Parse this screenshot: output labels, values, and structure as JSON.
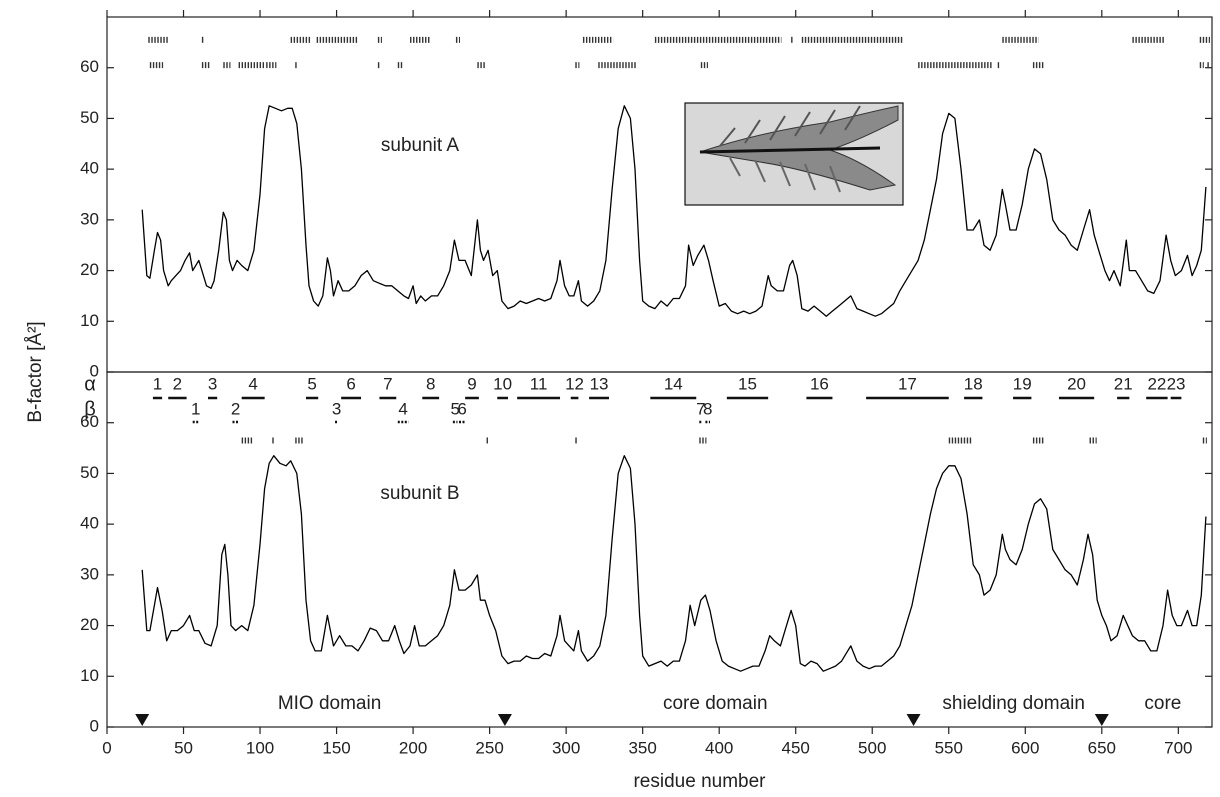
{
  "chart_data": [
    {
      "type": "line",
      "annotation": "subunit A",
      "ylabel": "B-factor [Å²]",
      "xlim": [
        0,
        722
      ],
      "xticks": [
        0,
        50,
        100,
        150,
        200,
        250,
        300,
        350,
        400,
        450,
        500,
        550,
        600,
        650,
        700
      ],
      "ylim": [
        0,
        70
      ],
      "yticks": [
        0,
        10,
        20,
        30,
        40,
        50,
        60
      ],
      "color": "#000000",
      "x": [
        23,
        26,
        28,
        31,
        33,
        35,
        37,
        40,
        42,
        45,
        48,
        51,
        54,
        56,
        60,
        62,
        65,
        68,
        70,
        73,
        76,
        78,
        80,
        82,
        85,
        88,
        92,
        96,
        100,
        103,
        106,
        110,
        114,
        118,
        121,
        124,
        127,
        130,
        132,
        135,
        138,
        141,
        144,
        146,
        148,
        151,
        154,
        158,
        162,
        166,
        170,
        174,
        178,
        182,
        186,
        190,
        194,
        197,
        200,
        202,
        205,
        208,
        212,
        216,
        220,
        224,
        227,
        230,
        234,
        238,
        242,
        244,
        246,
        249,
        252,
        255,
        258,
        262,
        266,
        270,
        274,
        278,
        282,
        286,
        290,
        294,
        296,
        299,
        302,
        305,
        308,
        310,
        314,
        318,
        322,
        326,
        330,
        334,
        338,
        342,
        345,
        348,
        350,
        354,
        358,
        362,
        366,
        370,
        374,
        378,
        380,
        383,
        386,
        390,
        393,
        396,
        400,
        404,
        408,
        412,
        416,
        420,
        424,
        428,
        432,
        434,
        438,
        442,
        446,
        448,
        451,
        454,
        458,
        462,
        466,
        470,
        474,
        478,
        482,
        486,
        490,
        494,
        498,
        502,
        506,
        510,
        514,
        518,
        522,
        526,
        530,
        534,
        538,
        542,
        546,
        550,
        554,
        558,
        562,
        566,
        570,
        573,
        577,
        581,
        585,
        587,
        590,
        594,
        598,
        602,
        606,
        610,
        614,
        618,
        622,
        626,
        630,
        634,
        638,
        642,
        645,
        648,
        652,
        655,
        658,
        662,
        666,
        668,
        672,
        676,
        680,
        684,
        688,
        692,
        695,
        698,
        702,
        706,
        709,
        712,
        715,
        718
      ],
      "values": [
        32,
        19,
        18.5,
        24,
        27.5,
        26,
        20,
        17,
        18,
        19,
        20,
        22,
        23.5,
        20,
        22,
        20,
        17,
        16.5,
        18,
        24,
        31.5,
        30,
        22,
        20,
        22,
        21,
        20,
        24,
        35,
        48,
        52.5,
        52,
        51.5,
        52,
        52,
        49,
        40,
        25,
        17,
        14,
        13,
        15,
        22.5,
        20,
        15,
        18,
        16,
        16,
        17,
        19,
        20,
        18,
        17.5,
        17,
        17,
        16,
        15,
        14.5,
        17,
        13.5,
        15,
        14,
        15,
        15,
        17,
        20,
        26,
        22,
        22,
        19,
        30,
        24,
        22,
        24,
        19,
        20,
        14,
        12.5,
        13,
        14,
        13.5,
        14,
        14.5,
        14,
        14.5,
        18,
        22,
        17,
        15,
        15,
        18,
        14,
        13,
        14,
        16,
        22,
        36,
        48,
        52.5,
        50,
        40,
        22,
        14,
        13,
        12.5,
        14,
        13,
        14.5,
        14.5,
        17,
        25,
        21,
        23,
        25,
        22,
        18,
        13,
        13.5,
        12,
        11.5,
        12,
        11.5,
        12,
        13,
        19,
        17,
        16,
        16,
        21,
        22,
        19,
        12.5,
        12,
        13,
        12,
        11,
        12,
        13,
        14,
        15,
        12.5,
        12,
        11.5,
        11,
        11.5,
        12.5,
        13.5,
        16,
        18,
        20,
        22,
        26,
        32,
        38,
        47,
        51,
        50,
        40,
        28,
        28,
        30,
        25,
        24,
        27,
        36,
        33,
        28,
        28,
        33,
        40,
        44,
        43,
        38,
        30,
        28,
        27,
        25,
        24,
        28,
        32,
        27,
        24,
        20,
        18,
        20,
        17,
        26,
        20,
        20,
        18,
        16,
        15.5,
        18,
        27,
        22,
        19,
        20,
        23,
        19,
        21,
        24,
        36.5
      ],
      "disorder_rows": [
        [
          [
            27,
            40
          ],
          [
            62,
            63
          ],
          [
            120,
            132
          ],
          [
            137,
            163
          ],
          [
            177,
            179
          ],
          [
            198,
            211
          ],
          [
            228,
            230
          ],
          [
            311,
            330
          ],
          [
            358,
            440
          ],
          [
            447,
            448
          ],
          [
            454,
            520
          ],
          [
            585,
            608
          ],
          [
            670,
            690
          ],
          [
            714,
            720
          ]
        ],
        [
          [
            28,
            36
          ],
          [
            62,
            67
          ],
          [
            76,
            80
          ],
          [
            86,
            102
          ],
          [
            104,
            110
          ],
          [
            123,
            124
          ],
          [
            177,
            178
          ],
          [
            190,
            193
          ],
          [
            242,
            247
          ],
          [
            306,
            308
          ],
          [
            321,
            345
          ],
          [
            388,
            392
          ],
          [
            530,
            578
          ],
          [
            582,
            583
          ],
          [
            605,
            612
          ],
          [
            714,
            716
          ],
          [
            719,
            720
          ]
        ]
      ]
    },
    {
      "type": "line",
      "annotation": "subunit B",
      "xlabel": "residue number",
      "xlim": [
        0,
        722
      ],
      "xticks": [
        0,
        50,
        100,
        150,
        200,
        250,
        300,
        350,
        400,
        450,
        500,
        550,
        600,
        650,
        700
      ],
      "ylim": [
        0,
        70
      ],
      "yticks": [
        0,
        10,
        20,
        30,
        40,
        50,
        60
      ],
      "color": "#000000",
      "x": [
        23,
        26,
        28,
        31,
        33,
        36,
        39,
        42,
        46,
        50,
        54,
        57,
        60,
        64,
        68,
        72,
        75,
        77,
        79,
        81,
        84,
        88,
        92,
        96,
        100,
        103,
        106,
        109,
        113,
        117,
        120,
        124,
        127,
        130,
        133,
        136,
        140,
        144,
        146,
        148,
        152,
        156,
        160,
        164,
        168,
        172,
        176,
        180,
        184,
        188,
        191,
        194,
        198,
        201,
        204,
        208,
        212,
        216,
        220,
        224,
        227,
        230,
        234,
        238,
        242,
        244,
        247,
        250,
        254,
        258,
        262,
        266,
        270,
        274,
        278,
        282,
        286,
        290,
        294,
        296,
        299,
        302,
        305,
        308,
        310,
        314,
        318,
        322,
        326,
        330,
        334,
        338,
        342,
        345,
        348,
        350,
        354,
        358,
        362,
        366,
        370,
        374,
        378,
        381,
        384,
        388,
        391,
        394,
        398,
        402,
        406,
        410,
        414,
        418,
        422,
        426,
        430,
        433,
        436,
        440,
        444,
        447,
        450,
        453,
        456,
        460,
        464,
        468,
        472,
        476,
        480,
        484,
        486,
        490,
        494,
        498,
        502,
        506,
        510,
        514,
        518,
        522,
        526,
        530,
        534,
        538,
        542,
        546,
        550,
        554,
        558,
        562,
        566,
        570,
        573,
        577,
        581,
        585,
        587,
        590,
        594,
        598,
        602,
        606,
        610,
        614,
        618,
        622,
        626,
        630,
        634,
        638,
        641,
        644,
        647,
        650,
        653,
        656,
        660,
        664,
        667,
        670,
        674,
        678,
        682,
        686,
        690,
        693,
        696,
        699,
        702,
        706,
        709,
        712,
        715,
        718
      ],
      "values": [
        31,
        19,
        19,
        24,
        27.5,
        23,
        17,
        19,
        19,
        20,
        22,
        19,
        19,
        16.5,
        16,
        20,
        34,
        36,
        30,
        20,
        19,
        20,
        19,
        24,
        36,
        47,
        52,
        53.5,
        52,
        51.5,
        52.5,
        50,
        42,
        25,
        17,
        15,
        15,
        22,
        19,
        16,
        18,
        16,
        16,
        15,
        17,
        19.5,
        19,
        17,
        17,
        20,
        17,
        14.5,
        16,
        20,
        16,
        16,
        17,
        18,
        20,
        24,
        31,
        27,
        27,
        28,
        30,
        25,
        25,
        22,
        19,
        14,
        12.5,
        13,
        13,
        14,
        13.5,
        13.5,
        14.5,
        14,
        18,
        22,
        17,
        16,
        15,
        19,
        15,
        13,
        14,
        16,
        22,
        37,
        50,
        53.5,
        51,
        40,
        22,
        14,
        12,
        12.5,
        13,
        12,
        13,
        13,
        17,
        24,
        20,
        25,
        26,
        23,
        17,
        13,
        12,
        11.5,
        11,
        11.5,
        12,
        12,
        15,
        18,
        17,
        16,
        20,
        23,
        20,
        12.5,
        12,
        13,
        12.5,
        11,
        11.5,
        12,
        13,
        15,
        16,
        13,
        12,
        11.5,
        12,
        12,
        13,
        14,
        16,
        20,
        24,
        30,
        36,
        42,
        47,
        50,
        51.5,
        51.5,
        49,
        42,
        32,
        30,
        26,
        27,
        30,
        38,
        35,
        33,
        32,
        35,
        40,
        44,
        45,
        43,
        35,
        33,
        31,
        30,
        28,
        33,
        38,
        34,
        25,
        22,
        20,
        17,
        18,
        22,
        20,
        18,
        17,
        17,
        15,
        15,
        20,
        27,
        22,
        20,
        20,
        23,
        20,
        20,
        26,
        41.5
      ],
      "disorder_rows": [
        [
          [
            88,
            95
          ],
          [
            108,
            109
          ],
          [
            123,
            128
          ],
          [
            248,
            249
          ],
          [
            306,
            307
          ],
          [
            387,
            391
          ],
          [
            550,
            565
          ],
          [
            605,
            612
          ],
          [
            642,
            646
          ],
          [
            716,
            718
          ]
        ]
      ],
      "helix_symbol": "α",
      "strand_symbol": "β",
      "helices": [
        {
          "label": "1",
          "start": 30,
          "end": 36
        },
        {
          "label": "2",
          "start": 40,
          "end": 52
        },
        {
          "label": "3",
          "start": 66,
          "end": 72
        },
        {
          "label": "4",
          "start": 88,
          "end": 103
        },
        {
          "label": "5",
          "start": 130,
          "end": 138
        },
        {
          "label": "6",
          "start": 153,
          "end": 166
        },
        {
          "label": "7",
          "start": 178,
          "end": 189
        },
        {
          "label": "8",
          "start": 206,
          "end": 217
        },
        {
          "label": "9",
          "start": 234,
          "end": 243
        },
        {
          "label": "10",
          "start": 255,
          "end": 262
        },
        {
          "label": "11",
          "start": 268,
          "end": 296
        },
        {
          "label": "12",
          "start": 303,
          "end": 308
        },
        {
          "label": "13",
          "start": 315,
          "end": 328
        },
        {
          "label": "14",
          "start": 355,
          "end": 385
        },
        {
          "label": "15",
          "start": 405,
          "end": 432
        },
        {
          "label": "16",
          "start": 457,
          "end": 474
        },
        {
          "label": "17",
          "start": 496,
          "end": 550
        },
        {
          "label": "18",
          "start": 560,
          "end": 572
        },
        {
          "label": "19",
          "start": 592,
          "end": 604
        },
        {
          "label": "20",
          "start": 622,
          "end": 645
        },
        {
          "label": "21",
          "start": 660,
          "end": 668
        },
        {
          "label": "22",
          "start": 679,
          "end": 693
        },
        {
          "label": "23",
          "start": 695,
          "end": 702
        }
      ],
      "strands": [
        {
          "label": "1",
          "start": 56,
          "end": 60
        },
        {
          "label": "2",
          "start": 82,
          "end": 86
        },
        {
          "label": "3",
          "start": 149,
          "end": 151
        },
        {
          "label": "4",
          "start": 190,
          "end": 197
        },
        {
          "label": "5",
          "start": 226,
          "end": 229
        },
        {
          "label": "6",
          "start": 230,
          "end": 234
        },
        {
          "label": "7",
          "start": 387,
          "end": 389
        },
        {
          "label": "8",
          "start": 391,
          "end": 394
        }
      ],
      "domain_boundaries": [
        23,
        260,
        527,
        650
      ],
      "domains": [
        "MIO domain",
        "core domain",
        "shielding domain",
        "core"
      ]
    }
  ]
}
